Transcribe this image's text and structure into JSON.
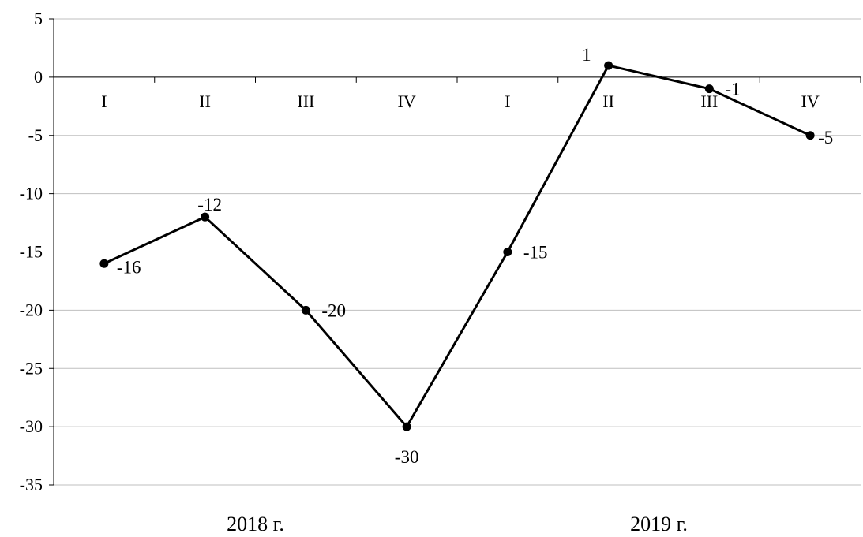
{
  "chart_data": {
    "type": "line",
    "categories": [
      "I",
      "II",
      "III",
      "IV",
      "I",
      "II",
      "III",
      "IV"
    ],
    "groups": [
      "2018 г.",
      "2019 г."
    ],
    "series": [
      {
        "values": [
          -16,
          -12,
          -20,
          -30,
          -15,
          1,
          -1,
          -5
        ]
      }
    ],
    "data_labels": [
      "-16",
      "-12",
      "-20",
      "-30",
      "-15",
      "1",
      "-1",
      "-5"
    ],
    "y_ticks": [
      5,
      0,
      -5,
      -10,
      -15,
      -20,
      -25,
      -30,
      -35
    ],
    "ylim": [
      -35,
      5
    ],
    "grid": true,
    "legend": "none",
    "line_color": "#000000",
    "grid_color": "#bfbfbf"
  }
}
